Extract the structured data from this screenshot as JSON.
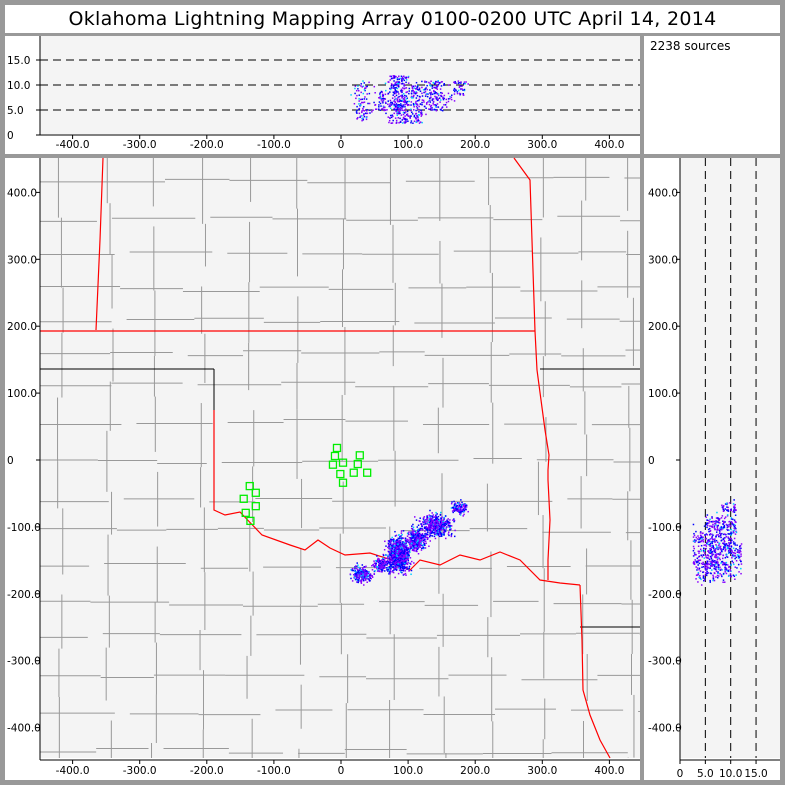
{
  "title": "Oklahoma Lightning Mapping Array   0100-0200 UTC  April 14, 2014",
  "sources_label": "2238 sources",
  "colors": {
    "border": "#ff0000",
    "county": "#999999",
    "station": "#00ee00",
    "plot_bg": "#f4f4f4",
    "source_low": "#8800ff",
    "source_mid": "#0000ff",
    "source_high": "#00ccff"
  },
  "chart_data": {
    "type": "scatter",
    "source_count": 2238,
    "plan_view": {
      "xlim": [
        -450,
        450
      ],
      "ylim": [
        -450,
        450
      ],
      "xticks": [
        "-400.0",
        "-300.0",
        "-200.0",
        "-100.0",
        "0",
        "100.0",
        "200.0",
        "300.0",
        "400.0"
      ],
      "yticks": [
        "400.0",
        "300.0",
        "200.0",
        "100.0",
        "0",
        "-100.0",
        "-200.0",
        "-300.0",
        "-400.0"
      ],
      "xunits": "km",
      "yunits": "km"
    },
    "altitude_view": {
      "zlim": [
        0,
        19
      ],
      "zticks": [
        "0",
        "5.0",
        "10.0",
        "15.0"
      ],
      "dashed_lines": [
        5,
        10,
        15
      ]
    },
    "stations": [
      [
        -6,
        18
      ],
      [
        -9,
        6
      ],
      [
        28,
        7
      ],
      [
        -12,
        -7
      ],
      [
        3,
        -4
      ],
      [
        25,
        -6
      ],
      [
        -1,
        -21
      ],
      [
        19,
        -19
      ],
      [
        39,
        -19
      ],
      [
        3,
        -34
      ],
      [
        -136,
        -39
      ],
      [
        -127,
        -49
      ],
      [
        -145,
        -58
      ],
      [
        -127,
        -69
      ],
      [
        -142,
        -79
      ],
      [
        -135,
        -91
      ]
    ],
    "source_clusters": [
      {
        "x": 85,
        "y": -140,
        "sx": 8,
        "sy": 12,
        "n": 900,
        "zmin": 2.5,
        "zmax": 12
      },
      {
        "x": 112,
        "y": -118,
        "sx": 6,
        "sy": 8,
        "n": 350,
        "zmin": 2.5,
        "zmax": 10
      },
      {
        "x": 140,
        "y": -97,
        "sx": 12,
        "sy": 8,
        "n": 450,
        "zmin": 5,
        "zmax": 11
      },
      {
        "x": 175,
        "y": -70,
        "sx": 6,
        "sy": 5,
        "n": 120,
        "zmin": 8,
        "zmax": 11
      },
      {
        "x": 30,
        "y": -170,
        "sx": 7,
        "sy": 6,
        "n": 250,
        "zmin": 3,
        "zmax": 11
      },
      {
        "x": 60,
        "y": -155,
        "sx": 6,
        "sy": 5,
        "n": 168,
        "zmin": 5,
        "zmax": 9
      }
    ]
  }
}
